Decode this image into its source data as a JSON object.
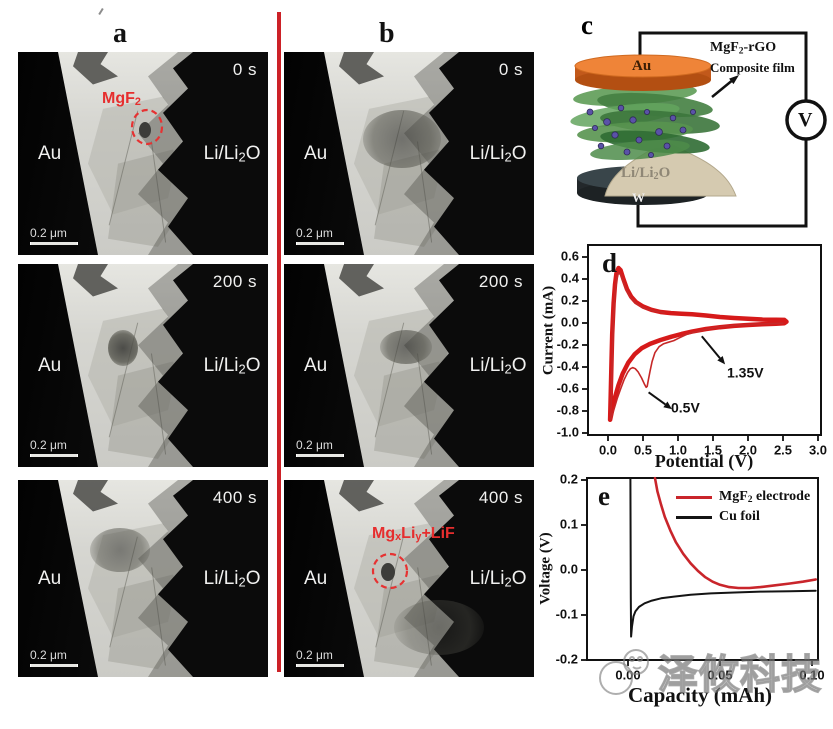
{
  "figure": {
    "watermark_text": "泽攸科技",
    "divider_color": "#cc2127"
  },
  "tem": {
    "panel_a_label": "a",
    "panel_b_label": "b",
    "electrode_left": "Au",
    "electrode_right_parts": {
      "base": "Li/Li",
      "sub": "2",
      "tail": "O"
    },
    "scale_bar": "0.2 μm",
    "times": {
      "t0": "0 s",
      "t200": "200 s",
      "t400": "400 s"
    },
    "annotation_a": {
      "base": "MgF",
      "sub": "2"
    },
    "annotation_b": {
      "p1": "Mg",
      "s1": "x",
      "p2": "Li",
      "s2": "y",
      "p3": "+LiF"
    }
  },
  "schematic": {
    "panel_label": "c",
    "top_electrode": "Au",
    "bottom_electrode": "W",
    "sample_parts": {
      "base": "Li/Li",
      "sub": "2",
      "tail": "O"
    },
    "film_label_line1_parts": {
      "base": "MgF",
      "sub": "2",
      "tail": "-rGO"
    },
    "film_label_line2": "Composite film",
    "voltmeter": "V",
    "colors": {
      "gold": "#ef8438",
      "gold_dark": "#c2591b",
      "tungsten": "#39454a",
      "rgo_green": "#4e8c4a",
      "mgf2_purple": "#5a52a8",
      "li2o_beige": "#d5cab0"
    }
  },
  "chart_data": [
    {
      "id": "cv",
      "type": "line",
      "panel_label": "d",
      "xlabel": "Potential (V)",
      "ylabel": "Current (mA)",
      "xlim": [
        -0.29,
        3.04
      ],
      "ylim": [
        -1.02,
        0.71
      ],
      "xticks": {
        "labels": [
          "0.0",
          "0.5",
          "1.0",
          "1.5",
          "2.0",
          "2.5",
          "3.0"
        ],
        "values": [
          0,
          0.5,
          1,
          1.5,
          2,
          2.5,
          3
        ]
      },
      "yticks": {
        "labels": [
          "0.6",
          "0.4",
          "0.2",
          "0.0",
          "-0.2",
          "-0.4",
          "-0.6",
          "-0.8",
          "-1.0"
        ],
        "values": [
          0.6,
          0.4,
          0.2,
          0,
          -0.2,
          -0.4,
          -0.6,
          -0.8,
          -1.0
        ]
      },
      "series": [
        {
          "name": "stabilized-cycles",
          "color": "#d61a1a",
          "width": 4.5,
          "points": [
            [
              0.03,
              -0.88
            ],
            [
              0.04,
              -0.62
            ],
            [
              0.05,
              -0.35
            ],
            [
              0.06,
              -0.1
            ],
            [
              0.08,
              0.18
            ],
            [
              0.1,
              0.35
            ],
            [
              0.12,
              0.45
            ],
            [
              0.15,
              0.5
            ],
            [
              0.18,
              0.48
            ],
            [
              0.22,
              0.4
            ],
            [
              0.27,
              0.31
            ],
            [
              0.33,
              0.24
            ],
            [
              0.4,
              0.19
            ],
            [
              0.5,
              0.15
            ],
            [
              0.62,
              0.12
            ],
            [
              0.75,
              0.1
            ],
            [
              0.9,
              0.09
            ],
            [
              1.05,
              0.085
            ],
            [
              1.2,
              0.08
            ],
            [
              1.4,
              0.068
            ],
            [
              1.6,
              0.055
            ],
            [
              1.8,
              0.045
            ],
            [
              2.0,
              0.038
            ],
            [
              2.2,
              0.032
            ],
            [
              2.4,
              0.03
            ],
            [
              2.52,
              0.028
            ],
            [
              2.55,
              0.012
            ],
            [
              2.52,
              -0.002
            ],
            [
              2.4,
              -0.006
            ],
            [
              2.2,
              -0.012
            ],
            [
              2.0,
              -0.018
            ],
            [
              1.8,
              -0.026
            ],
            [
              1.6,
              -0.038
            ],
            [
              1.4,
              -0.055
            ],
            [
              1.2,
              -0.078
            ],
            [
              1.05,
              -0.1
            ],
            [
              0.9,
              -0.125
            ],
            [
              0.75,
              -0.155
            ],
            [
              0.6,
              -0.19
            ],
            [
              0.48,
              -0.23
            ],
            [
              0.38,
              -0.285
            ],
            [
              0.29,
              -0.36
            ],
            [
              0.21,
              -0.46
            ],
            [
              0.15,
              -0.565
            ],
            [
              0.1,
              -0.675
            ],
            [
              0.06,
              -0.79
            ],
            [
              0.03,
              -0.88
            ]
          ]
        },
        {
          "name": "first-cycle",
          "color": "#c62828",
          "width": 1.6,
          "points": [
            [
              2.5,
              -0.002
            ],
            [
              2.3,
              -0.006
            ],
            [
              2.1,
              -0.012
            ],
            [
              1.9,
              -0.018
            ],
            [
              1.72,
              -0.026
            ],
            [
              1.58,
              -0.036
            ],
            [
              1.47,
              -0.048
            ],
            [
              1.38,
              -0.062
            ],
            [
              1.3,
              -0.075
            ],
            [
              1.22,
              -0.085
            ],
            [
              1.12,
              -0.105
            ],
            [
              1.02,
              -0.135
            ],
            [
              0.94,
              -0.16
            ],
            [
              0.86,
              -0.175
            ],
            [
              0.79,
              -0.19
            ],
            [
              0.73,
              -0.215
            ],
            [
              0.67,
              -0.27
            ],
            [
              0.63,
              -0.35
            ],
            [
              0.6,
              -0.44
            ],
            [
              0.575,
              -0.52
            ],
            [
              0.56,
              -0.575
            ],
            [
              0.545,
              -0.585
            ],
            [
              0.52,
              -0.555
            ],
            [
              0.48,
              -0.5
            ],
            [
              0.43,
              -0.445
            ],
            [
              0.39,
              -0.415
            ],
            [
              0.355,
              -0.405
            ],
            [
              0.32,
              -0.415
            ],
            [
              0.28,
              -0.45
            ],
            [
              0.23,
              -0.515
            ],
            [
              0.18,
              -0.6
            ],
            [
              0.13,
              -0.69
            ],
            [
              0.09,
              -0.775
            ],
            [
              0.06,
              -0.835
            ],
            [
              0.04,
              -0.875
            ],
            [
              0.05,
              -0.6
            ],
            [
              0.065,
              -0.25
            ],
            [
              0.08,
              0.05
            ],
            [
              0.1,
              0.27
            ],
            [
              0.125,
              0.4
            ],
            [
              0.15,
              0.455
            ],
            [
              0.18,
              0.44
            ],
            [
              0.22,
              0.37
            ],
            [
              0.27,
              0.29
            ],
            [
              0.33,
              0.225
            ],
            [
              0.42,
              0.17
            ],
            [
              0.52,
              0.135
            ],
            [
              0.65,
              0.11
            ],
            [
              0.8,
              0.095
            ]
          ]
        }
      ],
      "annotations": [
        {
          "text": "1.35V",
          "text_xy": [
            1.7,
            -0.4
          ],
          "arrow_from": [
            1.34,
            -0.12
          ],
          "arrow_to": [
            1.6,
            -0.32
          ]
        },
        {
          "text": "0.5V",
          "text_xy": [
            0.9,
            -0.72
          ],
          "arrow_from": [
            0.58,
            -0.63
          ],
          "arrow_to": [
            0.82,
            -0.74
          ]
        }
      ]
    },
    {
      "id": "discharge",
      "type": "line",
      "panel_label": "e",
      "xlabel": "Capacity (mAh)",
      "ylabel": "Voltage (V)",
      "xlim": [
        -0.022,
        0.103
      ],
      "ylim": [
        -0.2,
        0.204
      ],
      "xticks": {
        "labels": [
          "0.00",
          "0.05",
          "0.10"
        ],
        "values": [
          0,
          0.05,
          0.1
        ]
      },
      "yticks": {
        "labels": [
          "0.2",
          "0.1",
          "0.0",
          "-0.1",
          "-0.2"
        ],
        "values": [
          0.2,
          0.1,
          0,
          -0.1,
          -0.2
        ]
      },
      "series": [
        {
          "name": "mgf2-electrode",
          "color": "#c9252b",
          "width": 2.6,
          "points": [
            [
              0.0147,
              0.204
            ],
            [
              0.016,
              0.175
            ],
            [
              0.018,
              0.145
            ],
            [
              0.02,
              0.118
            ],
            [
              0.023,
              0.088
            ],
            [
              0.026,
              0.062
            ],
            [
              0.03,
              0.036
            ],
            [
              0.034,
              0.015
            ],
            [
              0.038,
              -0.002
            ],
            [
              0.042,
              -0.016
            ],
            [
              0.046,
              -0.026
            ],
            [
              0.05,
              -0.033
            ],
            [
              0.055,
              -0.038
            ],
            [
              0.06,
              -0.04
            ],
            [
              0.066,
              -0.04
            ],
            [
              0.072,
              -0.038
            ],
            [
              0.08,
              -0.034
            ],
            [
              0.088,
              -0.03
            ],
            [
              0.095,
              -0.026
            ],
            [
              0.102,
              -0.021
            ]
          ]
        },
        {
          "name": "cu-foil",
          "color": "#141414",
          "width": 2,
          "points": [
            [
              0.0013,
              0.204
            ],
            [
              0.0015,
              -0.06
            ],
            [
              0.0017,
              -0.148
            ],
            [
              0.0022,
              -0.125
            ],
            [
              0.003,
              -0.103
            ],
            [
              0.004,
              -0.092
            ],
            [
              0.006,
              -0.082
            ],
            [
              0.009,
              -0.074
            ],
            [
              0.013,
              -0.068
            ],
            [
              0.018,
              -0.063
            ],
            [
              0.025,
              -0.059
            ],
            [
              0.034,
              -0.055
            ],
            [
              0.045,
              -0.052
            ],
            [
              0.058,
              -0.05
            ],
            [
              0.072,
              -0.048
            ],
            [
              0.088,
              -0.047
            ],
            [
              0.102,
              -0.046
            ]
          ]
        }
      ],
      "legend": [
        {
          "label_parts": {
            "base": "MgF",
            "sub": "2",
            "tail": " electrode"
          },
          "color": "#c9252b"
        },
        {
          "label": "Cu foil",
          "color": "#141414"
        }
      ]
    }
  ]
}
